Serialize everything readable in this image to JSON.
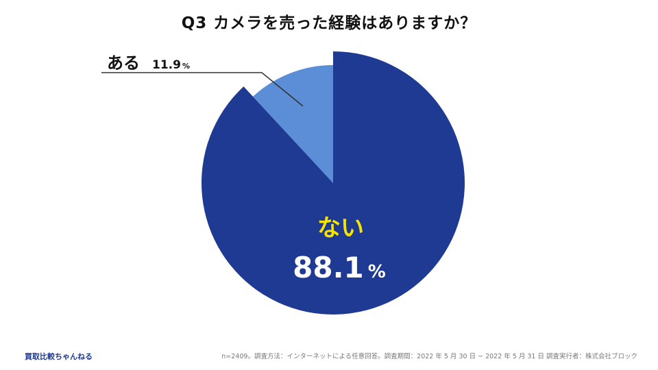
{
  "title": "Q3 カメラを売った経験はありますか？",
  "chart_data": {
    "type": "pie",
    "slices": [
      {
        "label": "ない",
        "value": 88.1,
        "value_text": "88.1",
        "unit": "%",
        "color": "#1f3a93",
        "label_color": "#f5e400",
        "value_color": "#ffffff"
      },
      {
        "label": "ある",
        "value": 11.9,
        "value_text": "11.9",
        "unit": "%",
        "color": "#5b8ed6",
        "label_color": "#111111",
        "value_color": "#111111"
      }
    ]
  },
  "footer": {
    "brand": "買取比較ちゃんねる",
    "note": "n=2409。調査方法：インターネットによる任意回答。調査期間：2022 年 5 月 30 日 ~ 2022 年 5 月 31 日 調査実行者：株式会社ブロック"
  },
  "colors": {
    "brand": "#1f3a93"
  }
}
